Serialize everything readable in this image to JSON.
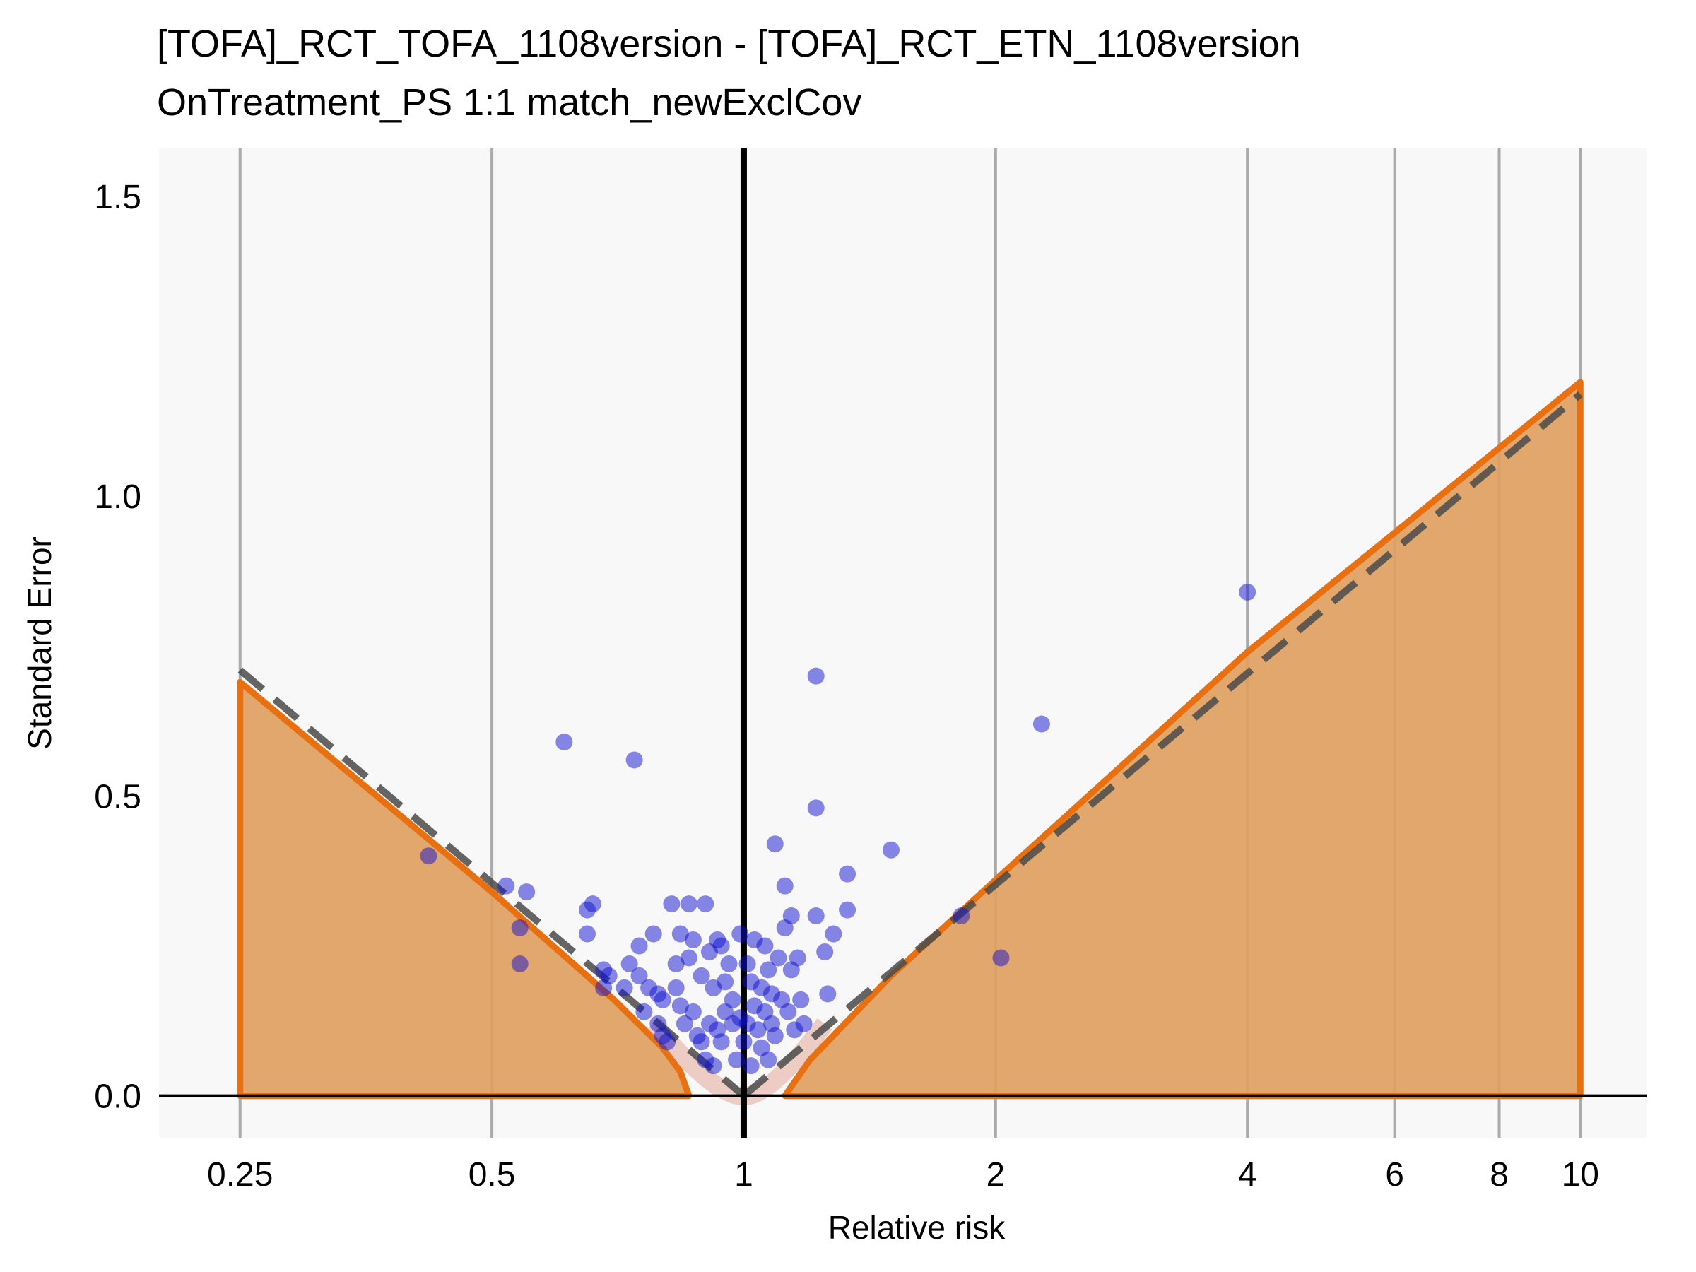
{
  "chart_data": {
    "type": "scatter",
    "title": "[TOFA]_RCT_TOFA_1108version - [TOFA]_RCT_ETN_1108version",
    "subtitle": "OnTreatment_PS 1:1 match_newExclCov",
    "xlabel": "Relative risk",
    "ylabel": "Standard Error",
    "x_scale": "log",
    "xlim": [
      0.2,
      12
    ],
    "ylim": [
      -0.07,
      1.58
    ],
    "x_ticks": [
      0.25,
      0.5,
      1,
      2,
      4,
      6,
      8,
      10
    ],
    "x_tick_labels": [
      "0.25",
      "0.5",
      "1",
      "2",
      "4",
      "6",
      "8",
      "10"
    ],
    "y_ticks": [
      0,
      0.5,
      1,
      1.5
    ],
    "y_tick_labels": [
      "0.0",
      "0.5",
      "1.0",
      "1.5"
    ],
    "grid": "vertical",
    "reference_line_x": 1,
    "colors": {
      "points": "#1010d0",
      "region_fill": "#e0a060",
      "region_line": "#e87010",
      "dashed_line": "#4a4a4a",
      "panel_background": "#f8f8f8",
      "grid": "#aaaaaa"
    },
    "calibrated_region": {
      "left": [
        [
          0.25,
          0.69
        ],
        [
          0.5,
          0.34
        ],
        [
          0.7,
          0.16
        ],
        [
          0.8,
          0.08
        ],
        [
          0.84,
          0.04
        ],
        [
          0.86,
          0.0
        ]
      ],
      "right": [
        [
          1.12,
          0.0
        ],
        [
          1.2,
          0.06
        ],
        [
          1.5,
          0.2
        ],
        [
          2,
          0.36
        ],
        [
          4,
          0.74
        ],
        [
          10,
          1.19
        ]
      ]
    },
    "dashed_boundary": {
      "left": [
        [
          0.25,
          0.71
        ],
        [
          1,
          0.0
        ]
      ],
      "right": [
        [
          1,
          0.0
        ],
        [
          10,
          1.17
        ]
      ]
    },
    "points": [
      {
        "x": 0.42,
        "y": 0.4
      },
      {
        "x": 0.52,
        "y": 0.35
      },
      {
        "x": 0.55,
        "y": 0.34
      },
      {
        "x": 0.54,
        "y": 0.28
      },
      {
        "x": 0.54,
        "y": 0.22
      },
      {
        "x": 0.61,
        "y": 0.59
      },
      {
        "x": 0.65,
        "y": 0.31
      },
      {
        "x": 0.66,
        "y": 0.32
      },
      {
        "x": 0.65,
        "y": 0.27
      },
      {
        "x": 0.68,
        "y": 0.21
      },
      {
        "x": 0.68,
        "y": 0.18
      },
      {
        "x": 0.69,
        "y": 0.2
      },
      {
        "x": 0.72,
        "y": 0.18
      },
      {
        "x": 0.73,
        "y": 0.22
      },
      {
        "x": 0.74,
        "y": 0.56
      },
      {
        "x": 0.75,
        "y": 0.25
      },
      {
        "x": 0.75,
        "y": 0.2
      },
      {
        "x": 0.76,
        "y": 0.14
      },
      {
        "x": 0.77,
        "y": 0.18
      },
      {
        "x": 0.78,
        "y": 0.27
      },
      {
        "x": 0.79,
        "y": 0.17
      },
      {
        "x": 0.79,
        "y": 0.12
      },
      {
        "x": 0.8,
        "y": 0.1
      },
      {
        "x": 0.8,
        "y": 0.16
      },
      {
        "x": 0.81,
        "y": 0.09
      },
      {
        "x": 0.82,
        "y": 0.32
      },
      {
        "x": 0.83,
        "y": 0.22
      },
      {
        "x": 0.83,
        "y": 0.18
      },
      {
        "x": 0.84,
        "y": 0.27
      },
      {
        "x": 0.84,
        "y": 0.15
      },
      {
        "x": 0.85,
        "y": 0.12
      },
      {
        "x": 0.86,
        "y": 0.32
      },
      {
        "x": 0.86,
        "y": 0.23
      },
      {
        "x": 0.87,
        "y": 0.26
      },
      {
        "x": 0.87,
        "y": 0.14
      },
      {
        "x": 0.88,
        "y": 0.1
      },
      {
        "x": 0.89,
        "y": 0.2
      },
      {
        "x": 0.89,
        "y": 0.09
      },
      {
        "x": 0.9,
        "y": 0.32
      },
      {
        "x": 0.9,
        "y": 0.06
      },
      {
        "x": 0.91,
        "y": 0.24
      },
      {
        "x": 0.91,
        "y": 0.12
      },
      {
        "x": 0.92,
        "y": 0.18
      },
      {
        "x": 0.92,
        "y": 0.05
      },
      {
        "x": 0.93,
        "y": 0.26
      },
      {
        "x": 0.93,
        "y": 0.11
      },
      {
        "x": 0.94,
        "y": 0.25
      },
      {
        "x": 0.94,
        "y": 0.09
      },
      {
        "x": 0.95,
        "y": 0.19
      },
      {
        "x": 0.95,
        "y": 0.14
      },
      {
        "x": 0.96,
        "y": 0.22
      },
      {
        "x": 0.97,
        "y": 0.12
      },
      {
        "x": 0.97,
        "y": 0.16
      },
      {
        "x": 0.98,
        "y": 0.06
      },
      {
        "x": 0.99,
        "y": 0.27
      },
      {
        "x": 0.99,
        "y": 0.13
      },
      {
        "x": 1.0,
        "y": 0.09
      },
      {
        "x": 1.01,
        "y": 0.22
      },
      {
        "x": 1.01,
        "y": 0.12
      },
      {
        "x": 1.02,
        "y": 0.19
      },
      {
        "x": 1.02,
        "y": 0.05
      },
      {
        "x": 1.03,
        "y": 0.26
      },
      {
        "x": 1.03,
        "y": 0.15
      },
      {
        "x": 1.04,
        "y": 0.11
      },
      {
        "x": 1.05,
        "y": 0.18
      },
      {
        "x": 1.05,
        "y": 0.08
      },
      {
        "x": 1.06,
        "y": 0.25
      },
      {
        "x": 1.06,
        "y": 0.14
      },
      {
        "x": 1.07,
        "y": 0.21
      },
      {
        "x": 1.07,
        "y": 0.06
      },
      {
        "x": 1.08,
        "y": 0.12
      },
      {
        "x": 1.08,
        "y": 0.17
      },
      {
        "x": 1.09,
        "y": 0.42
      },
      {
        "x": 1.09,
        "y": 0.1
      },
      {
        "x": 1.1,
        "y": 0.23
      },
      {
        "x": 1.11,
        "y": 0.16
      },
      {
        "x": 1.12,
        "y": 0.28
      },
      {
        "x": 1.12,
        "y": 0.35
      },
      {
        "x": 1.13,
        "y": 0.14
      },
      {
        "x": 1.14,
        "y": 0.21
      },
      {
        "x": 1.14,
        "y": 0.3
      },
      {
        "x": 1.15,
        "y": 0.11
      },
      {
        "x": 1.16,
        "y": 0.23
      },
      {
        "x": 1.17,
        "y": 0.16
      },
      {
        "x": 1.18,
        "y": 0.12
      },
      {
        "x": 1.22,
        "y": 0.7
      },
      {
        "x": 1.22,
        "y": 0.48
      },
      {
        "x": 1.22,
        "y": 0.3
      },
      {
        "x": 1.25,
        "y": 0.24
      },
      {
        "x": 1.26,
        "y": 0.17
      },
      {
        "x": 1.28,
        "y": 0.27
      },
      {
        "x": 1.33,
        "y": 0.37
      },
      {
        "x": 1.33,
        "y": 0.31
      },
      {
        "x": 1.5,
        "y": 0.41
      },
      {
        "x": 1.82,
        "y": 0.3
      },
      {
        "x": 2.03,
        "y": 0.23
      },
      {
        "x": 2.27,
        "y": 0.62
      },
      {
        "x": 4.0,
        "y": 0.84
      }
    ]
  }
}
